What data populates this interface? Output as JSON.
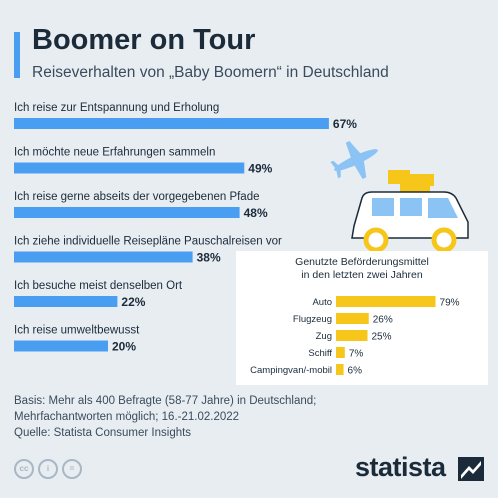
{
  "header": {
    "title": "Boomer on Tour",
    "subtitle": "Reiseverhalten von „Baby Boomern“ in Deutschland"
  },
  "chart_data": [
    {
      "type": "bar",
      "orientation": "horizontal",
      "categories": [
        "Ich reise zur Entspannung und Erholung",
        "Ich möchte neue Erfahrungen sammeln",
        "Ich reise gerne abseits der vorgegebenen Pfade",
        "Ich ziehe individuelle Reisepläne Pauschalreisen vor",
        "Ich besuche meist denselben Ort",
        "Ich reise umweltbewusst"
      ],
      "values": [
        67,
        49,
        48,
        38,
        22,
        20
      ],
      "value_labels": [
        "67%",
        "49%",
        "48%",
        "38%",
        "22%",
        "20%"
      ],
      "xlim": [
        0,
        100
      ],
      "unit": "%",
      "color": "#4a9ef2",
      "grid": false,
      "legend": "none"
    },
    {
      "type": "bar",
      "orientation": "horizontal",
      "title": "Genutzte Beförderungsmittel in den letzten zwei Jahren",
      "title_lines": [
        "Genutzte Beförderungsmittel",
        "in den letzten zwei Jahren"
      ],
      "categories": [
        "Auto",
        "Flugzeug",
        "Zug",
        "Schiff",
        "Campingvan/-mobil"
      ],
      "values": [
        79,
        26,
        25,
        7,
        6
      ],
      "value_labels": [
        "79%",
        "26%",
        "25%",
        "7%",
        "6%"
      ],
      "xlim": [
        0,
        100
      ],
      "unit": "%",
      "color": "#f7c61b",
      "grid": false,
      "legend": "none"
    }
  ],
  "footer": {
    "basis_line1": "Basis: Mehr als 400 Befragte (58-77 Jahre) in Deutschland;",
    "basis_line2": "Mehrfachantworten möglich; 16.-21.02.2022",
    "source": "Quelle: Statista Consumer Insights"
  },
  "license_icons": [
    {
      "name": "cc-icon",
      "label": "cc"
    },
    {
      "name": "by-icon",
      "label": "i"
    },
    {
      "name": "nd-icon",
      "label": "="
    }
  ],
  "brand": {
    "name": "statista"
  },
  "illustrations": [
    "airplane-icon",
    "camper-van-icon"
  ],
  "colors": {
    "accent_blue": "#4a9ef2",
    "accent_yellow": "#f7c61b",
    "background": "#e8edf2",
    "text_dark": "#1b2b3a",
    "illustration_blue": "#8cc3f5"
  }
}
